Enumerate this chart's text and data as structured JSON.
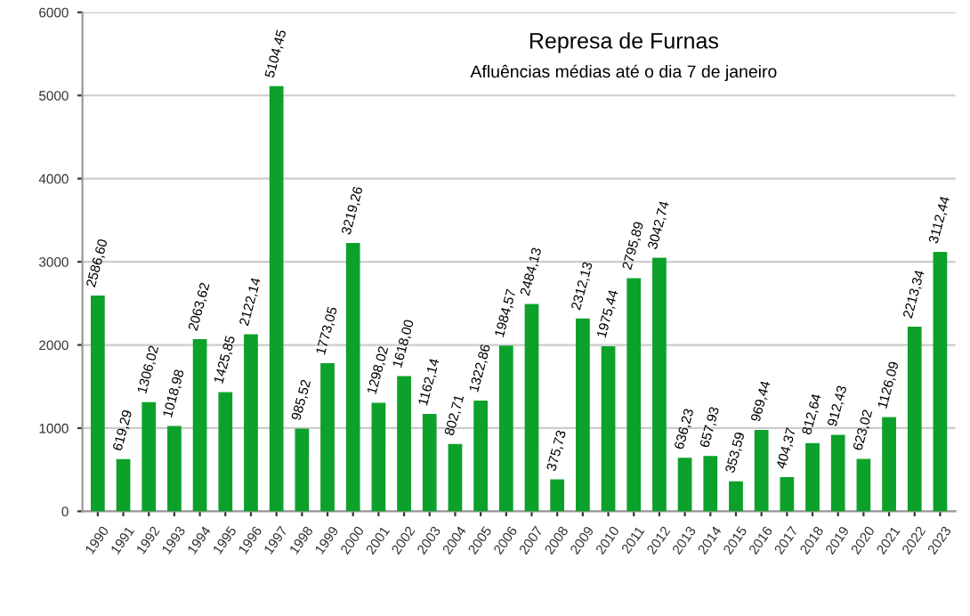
{
  "chart_data": {
    "type": "bar",
    "title": "Represa de Furnas",
    "subtitle": "Afluências médias até o dia 7 de janeiro",
    "categories": [
      "1990",
      "1991",
      "1992",
      "1993",
      "1994",
      "1995",
      "1996",
      "1997",
      "1998",
      "1999",
      "2000",
      "2001",
      "2002",
      "2003",
      "2004",
      "2005",
      "2006",
      "2007",
      "2008",
      "2009",
      "2010",
      "2011",
      "2012",
      "2013",
      "2014",
      "2015",
      "2016",
      "2017",
      "2018",
      "2019",
      "2020",
      "2021",
      "2022",
      "2023"
    ],
    "values": [
      2586.6,
      619.29,
      1306.02,
      1018.98,
      2063.62,
      1425.85,
      2122.14,
      5104.45,
      985.52,
      1773.05,
      3219.26,
      1298.02,
      1618.0,
      1162.14,
      802.71,
      1322.86,
      1984.57,
      2484.13,
      375.73,
      2312.13,
      1975.44,
      2795.89,
      3042.74,
      636.23,
      657.93,
      353.59,
      969.44,
      404.37,
      812.64,
      912.43,
      623.02,
      1126.09,
      2213.34,
      3112.44
    ],
    "value_labels": [
      "2586,60",
      "619,29",
      "1306,02",
      "1018,98",
      "2063,62",
      "1425,85",
      "2122,14",
      "5104,45",
      "985,52",
      "1773,05",
      "3219,26",
      "1298,02",
      "1618,00",
      "1162,14",
      "802,71",
      "1322,86",
      "1984,57",
      "2484,13",
      "375,73",
      "2312,13",
      "1975,44",
      "2795,89",
      "3042,74",
      "636,23",
      "657,93",
      "353,59",
      "969,44",
      "404,37",
      "812,64",
      "912,43",
      "623,02",
      "1126,09",
      "2213,34",
      "3112,44"
    ],
    "color": "#0ca12a",
    "ylim": [
      0,
      6000
    ],
    "yticks": [
      0,
      1000,
      2000,
      3000,
      4000,
      5000,
      6000
    ],
    "grid": "y",
    "legend": false
  }
}
